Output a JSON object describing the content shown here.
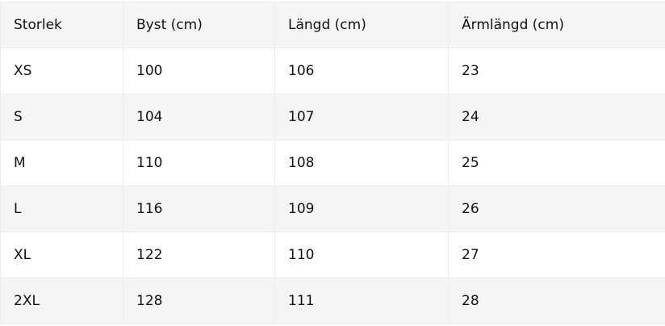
{
  "table": {
    "headers": [
      "Storlek",
      "Byst (cm)",
      "Längd (cm)",
      "Ärmlängd (cm)"
    ],
    "rows": [
      [
        "XS",
        "100",
        "106",
        "23"
      ],
      [
        "S",
        "104",
        "107",
        "24"
      ],
      [
        "M",
        "110",
        "108",
        "25"
      ],
      [
        "L",
        "116",
        "109",
        "26"
      ],
      [
        "XL",
        "122",
        "110",
        "27"
      ],
      [
        "2XL",
        "128",
        "111",
        "28"
      ]
    ]
  },
  "colors": {
    "header_bg": "#f5f5f5",
    "alt_row_bg": "#f5f5f5",
    "border": "#ebebeb"
  }
}
